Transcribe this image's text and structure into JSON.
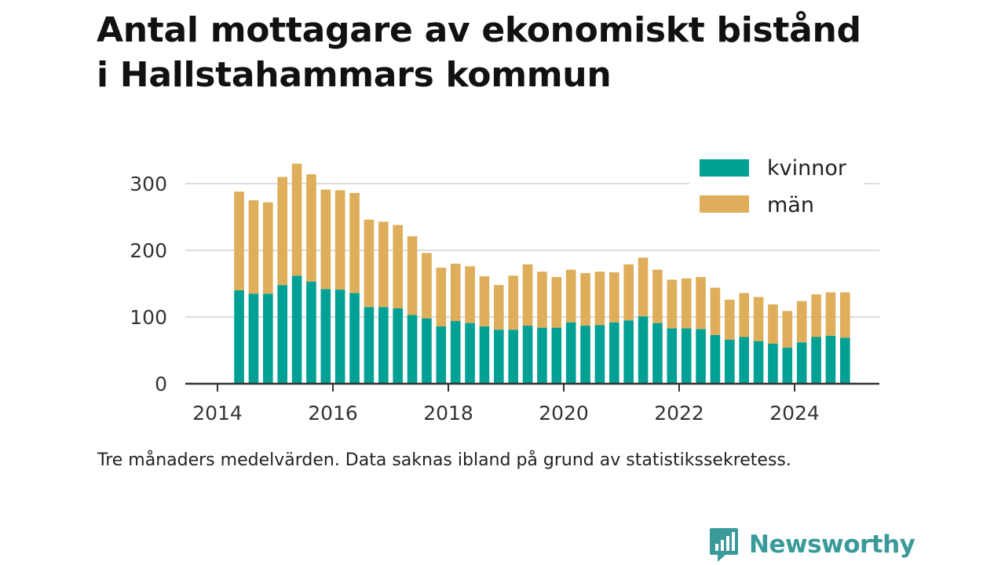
{
  "title_line1": "Antal mottagare av ekonomiskt bistånd",
  "title_line2": "i Hallstahammars kommun",
  "caption": "Tre månaders medelvärden. Data saknas ibland på grund av statistikssekretess.",
  "brand": "Newsworthy",
  "colors": {
    "kvinnor": "#00a095",
    "man": "#deae5a",
    "grid": "#dddddd",
    "axis": "#333333",
    "brand": "#3a9a9a"
  },
  "chart_data": {
    "type": "bar",
    "stacked": true,
    "x_ticks": [
      "2014",
      "2016",
      "2018",
      "2020",
      "2022",
      "2024"
    ],
    "y_ticks": [
      "0",
      "100",
      "200",
      "300"
    ],
    "xlim": [
      2013.5,
      2025.5
    ],
    "ylim": [
      0,
      340
    ],
    "grid": true,
    "legend_position": "top-right",
    "x": [
      "2014-Q2",
      "2014-Q3",
      "2014-Q4",
      "2015-Q1",
      "2015-Q2",
      "2015-Q3",
      "2015-Q4",
      "2016-Q1",
      "2016-Q2",
      "2016-Q3",
      "2016-Q4",
      "2017-Q1",
      "2017-Q2",
      "2017-Q3",
      "2017-Q4",
      "2018-Q1",
      "2018-Q2",
      "2018-Q3",
      "2018-Q4",
      "2019-Q1",
      "2019-Q2",
      "2019-Q3",
      "2019-Q4",
      "2020-Q1",
      "2020-Q2",
      "2020-Q3",
      "2020-Q4",
      "2021-Q1",
      "2021-Q2",
      "2021-Q3",
      "2021-Q4",
      "2022-Q1",
      "2022-Q2",
      "2022-Q3",
      "2022-Q4",
      "2023-Q1",
      "2023-Q2",
      "2023-Q3",
      "2023-Q4",
      "2024-Q1",
      "2024-Q2",
      "2024-Q3",
      "2024-Q4"
    ],
    "series": [
      {
        "name": "kvinnor",
        "values": [
          140,
          135,
          135,
          148,
          162,
          153,
          142,
          141,
          136,
          115,
          115,
          113,
          103,
          98,
          86,
          94,
          91,
          86,
          81,
          81,
          87,
          84,
          84,
          92,
          87,
          88,
          92,
          95,
          101,
          91,
          83,
          83,
          82,
          73,
          66,
          70,
          64,
          60,
          54,
          62,
          70,
          72,
          69
        ]
      },
      {
        "name": "män",
        "values": [
          148,
          140,
          137,
          162,
          168,
          161,
          149,
          149,
          150,
          131,
          128,
          125,
          118,
          98,
          88,
          86,
          85,
          75,
          67,
          81,
          92,
          84,
          76,
          79,
          79,
          80,
          75,
          84,
          88,
          80,
          73,
          75,
          78,
          71,
          60,
          66,
          66,
          59,
          55,
          62,
          64,
          65,
          68
        ]
      }
    ]
  }
}
